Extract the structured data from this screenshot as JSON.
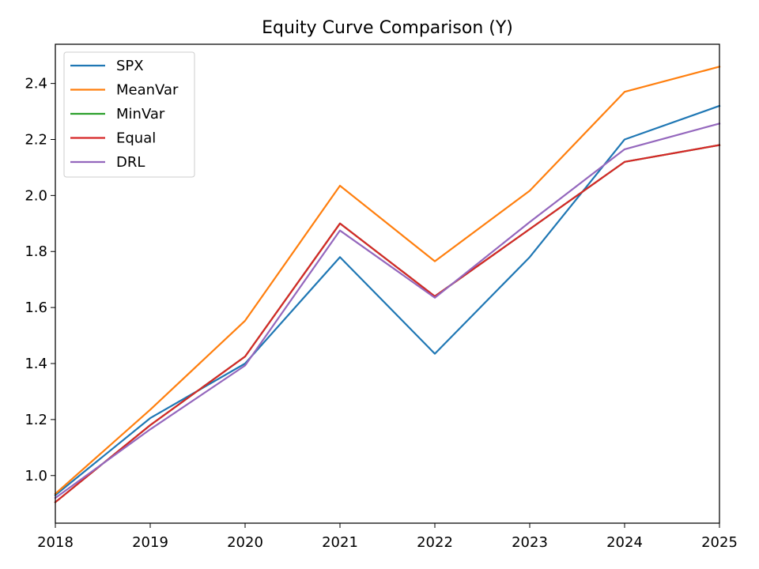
{
  "chart_data": {
    "type": "line",
    "title": "Equity Curve Comparison (Y)",
    "xlabel": "",
    "ylabel": "",
    "x": [
      2018,
      2019,
      2020,
      2021,
      2022,
      2023,
      2024,
      2025
    ],
    "xlim": [
      2018,
      2025
    ],
    "ylim": [
      0.83,
      2.54
    ],
    "xticks": [
      "2018",
      "2019",
      "2020",
      "2021",
      "2022",
      "2023",
      "2024",
      "2025"
    ],
    "yticks": [
      "1.0",
      "1.2",
      "1.4",
      "1.6",
      "1.8",
      "2.0",
      "2.2",
      "2.4"
    ],
    "grid": false,
    "legend_position": "upper-left",
    "series": [
      {
        "name": "SPX",
        "color": "#1f77b4",
        "values": [
          0.93,
          1.205,
          1.4,
          1.78,
          1.435,
          1.78,
          2.2,
          2.32
        ]
      },
      {
        "name": "MeanVar",
        "color": "#ff7f0e",
        "values": [
          0.935,
          1.235,
          1.553,
          2.035,
          1.765,
          2.017,
          2.37,
          2.46
        ]
      },
      {
        "name": "MinVar",
        "color": "#2ca02c",
        "values": [
          0.905,
          1.18,
          1.425,
          1.9,
          1.64,
          1.88,
          2.12,
          2.18
        ]
      },
      {
        "name": "Equal",
        "color": "#d62728",
        "values": [
          0.905,
          1.18,
          1.425,
          1.9,
          1.64,
          1.88,
          2.12,
          2.18
        ]
      },
      {
        "name": "DRL",
        "color": "#9467bd",
        "values": [
          0.92,
          1.165,
          1.393,
          1.875,
          1.635,
          1.905,
          2.165,
          2.257
        ]
      }
    ]
  }
}
